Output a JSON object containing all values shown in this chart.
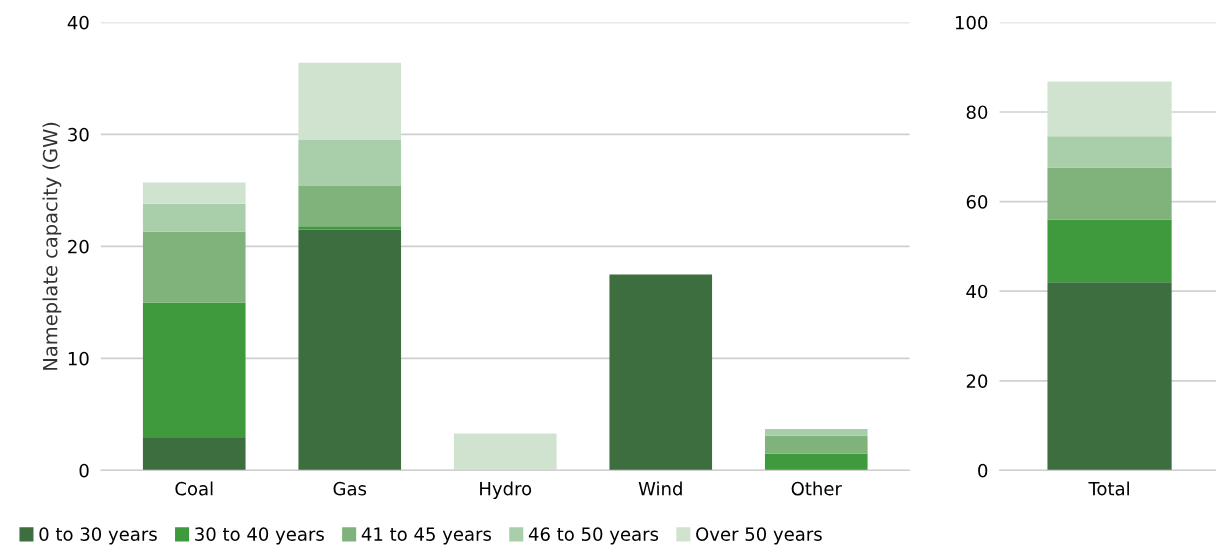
{
  "chart_data": [
    {
      "type": "bar",
      "stacked": true,
      "ylabel": "Nameplate capacity (GW)",
      "categories": [
        "Coal",
        "Gas",
        "Hydro",
        "Wind",
        "Other"
      ],
      "ylim": [
        0,
        40
      ],
      "yticks": [
        0,
        10,
        20,
        30,
        40
      ],
      "grid": "y",
      "legend": "bottom",
      "series": [
        {
          "name": "0 to 30 years",
          "color": "#3d6e3f",
          "values": [
            2.9,
            21.5,
            0,
            17.5,
            0
          ]
        },
        {
          "name": "30 to 40 years",
          "color": "#3f9a3d",
          "values": [
            12.1,
            0.3,
            0,
            0,
            1.5
          ]
        },
        {
          "name": "41 to 45 years",
          "color": "#7fb37b",
          "values": [
            6.3,
            3.6,
            0,
            0,
            1.6
          ]
        },
        {
          "name": "46 to 50 years",
          "color": "#a8cfaa",
          "values": [
            2.5,
            4.1,
            0,
            0,
            0.6
          ]
        },
        {
          "name": "Over 50 years",
          "color": "#cfe3cf",
          "values": [
            1.9,
            6.9,
            3.3,
            0,
            0
          ]
        }
      ]
    },
    {
      "type": "bar",
      "stacked": true,
      "categories": [
        "Total"
      ],
      "ylim": [
        0,
        100
      ],
      "yticks": [
        0,
        20,
        40,
        60,
        80,
        100
      ],
      "grid": "y",
      "series": [
        {
          "color": "#3d6e3f",
          "values": [
            42
          ]
        },
        {
          "color": "#3f9a3d",
          "values": [
            14
          ]
        },
        {
          "color": "#7fb37b",
          "values": [
            11.6
          ]
        },
        {
          "color": "#a8cfaa",
          "values": [
            7
          ]
        },
        {
          "color": "#cfe3cf",
          "values": [
            12.2
          ]
        }
      ]
    }
  ]
}
